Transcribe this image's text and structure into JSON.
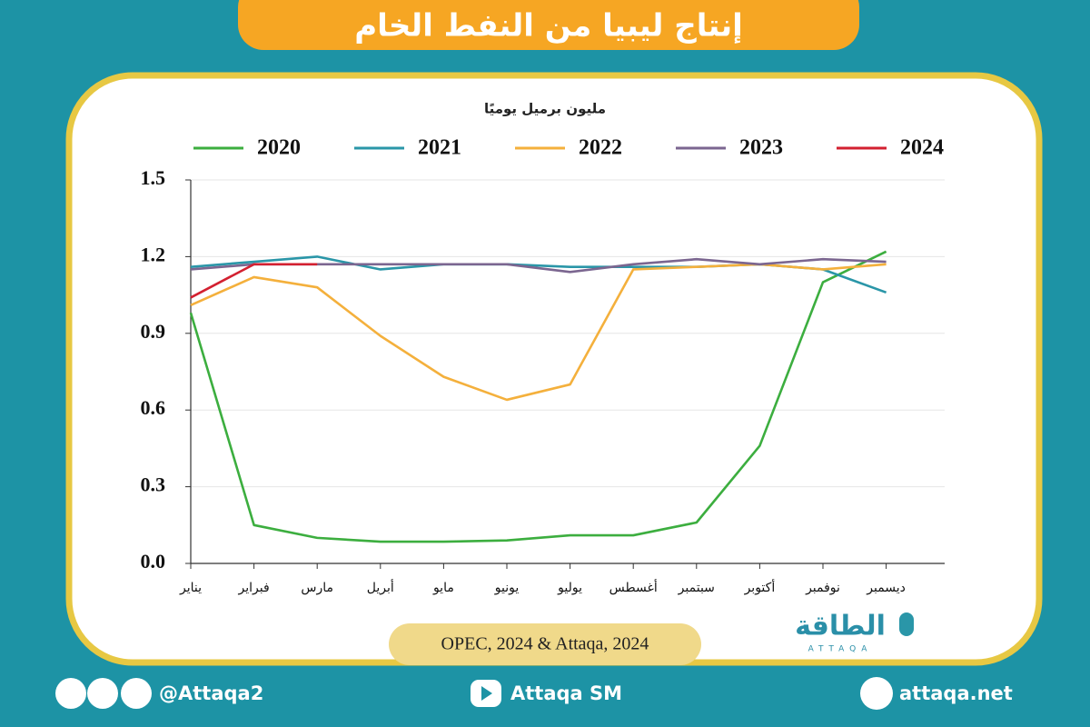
{
  "header": {
    "title": "إنتاج ليبيا من النفط الخام"
  },
  "chart_data": {
    "type": "line",
    "ylabel": "مليون برميل يوميًا",
    "categories": [
      "يناير",
      "فبراير",
      "مارس",
      "أبريل",
      "مايو",
      "يونيو",
      "يوليو",
      "أغسطس",
      "سبتمبر",
      "أكتوبر",
      "نوفمبر",
      "ديسمبر"
    ],
    "series": [
      {
        "name": "2020",
        "color": "#3cae3f",
        "values": [
          0.98,
          0.15,
          0.1,
          0.085,
          0.085,
          0.09,
          0.11,
          0.11,
          0.16,
          0.46,
          1.1,
          1.22
        ]
      },
      {
        "name": "2021",
        "color": "#2a96a8",
        "values": [
          1.16,
          1.18,
          1.2,
          1.15,
          1.17,
          1.17,
          1.16,
          1.16,
          1.16,
          1.17,
          1.15,
          1.06
        ]
      },
      {
        "name": "2022",
        "color": "#f4b03c",
        "values": [
          1.01,
          1.12,
          1.08,
          0.89,
          0.73,
          0.64,
          0.7,
          1.15,
          1.16,
          1.17,
          1.15,
          1.17
        ]
      },
      {
        "name": "2023",
        "color": "#7b6690",
        "values": [
          1.15,
          1.17,
          1.17,
          1.17,
          1.17,
          1.17,
          1.14,
          1.17,
          1.19,
          1.17,
          1.19,
          1.18
        ]
      },
      {
        "name": "2024",
        "color": "#d32030",
        "values": [
          1.04,
          1.17,
          1.17,
          null,
          null,
          null,
          null,
          null,
          null,
          null,
          null,
          null
        ]
      }
    ],
    "ylim": [
      0,
      1.5
    ],
    "yticks": [
      {
        "value": 0,
        "label": "0.0"
      },
      0.3,
      0.6,
      0.9,
      1.2,
      1.5
    ],
    "grid": true
  },
  "source": "OPEC, 2024 & Attaqa, 2024",
  "logo": {
    "name": "الطاقة",
    "latin": "ATTAQA"
  },
  "footer": {
    "social": "@Attaqa2",
    "youtube": "Attaqa SM",
    "website": "attaqa.net"
  }
}
